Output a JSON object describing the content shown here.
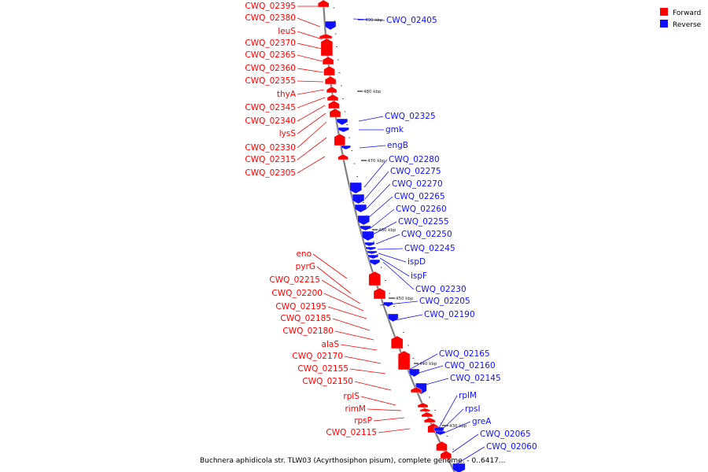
{
  "colors": {
    "forward": "#ff0000",
    "reverse": "#1010ff",
    "backbone": "#808080",
    "leader": "#555555"
  },
  "legend": [
    {
      "label": "Forward",
      "strand": "forward"
    },
    {
      "label": "Reverse",
      "strand": "reverse"
    }
  ],
  "caption": "Buchnera aphidicola str. TLW03 (Acyrthosiphon pisum), complete genome. - 0..6417...",
  "ticks": [
    "490 kbp",
    "480 kbp",
    "470 kbp",
    "460 kbp",
    "450 kbp",
    "440 kbp",
    "430 kbp"
  ],
  "forward_labels": [
    "CWQ_02395",
    "CWQ_02380",
    "leuS",
    "CWQ_02370",
    "CWQ_02365",
    "CWQ_02360",
    "CWQ_02355",
    "thyA",
    "CWQ_02345",
    "CWQ_02340",
    "lysS",
    "CWQ_02330",
    "CWQ_02315",
    "CWQ_02305",
    "eno",
    "pyrG",
    "CWQ_02215",
    "CWQ_02200",
    "CWQ_02195",
    "CWQ_02185",
    "CWQ_02180",
    "alaS",
    "CWQ_02170",
    "CWQ_02155",
    "CWQ_02150",
    "rplS",
    "rimM",
    "rpsP",
    "CWQ_02115"
  ],
  "reverse_labels": [
    "CWQ_02405",
    "CWQ_02325",
    "gmk",
    "engB",
    "CWQ_02280",
    "CWQ_02275",
    "CWQ_02270",
    "CWQ_02265",
    "CWQ_02260",
    "CWQ_02255",
    "CWQ_02250",
    "CWQ_02245",
    "ispD",
    "ispF",
    "CWQ_02230",
    "CWQ_02205",
    "CWQ_02190",
    "CWQ_02165",
    "CWQ_02160",
    "CWQ_02145",
    "rplM",
    "rpsI",
    "greA",
    "CWQ_02065",
    "CWQ_02060"
  ]
}
